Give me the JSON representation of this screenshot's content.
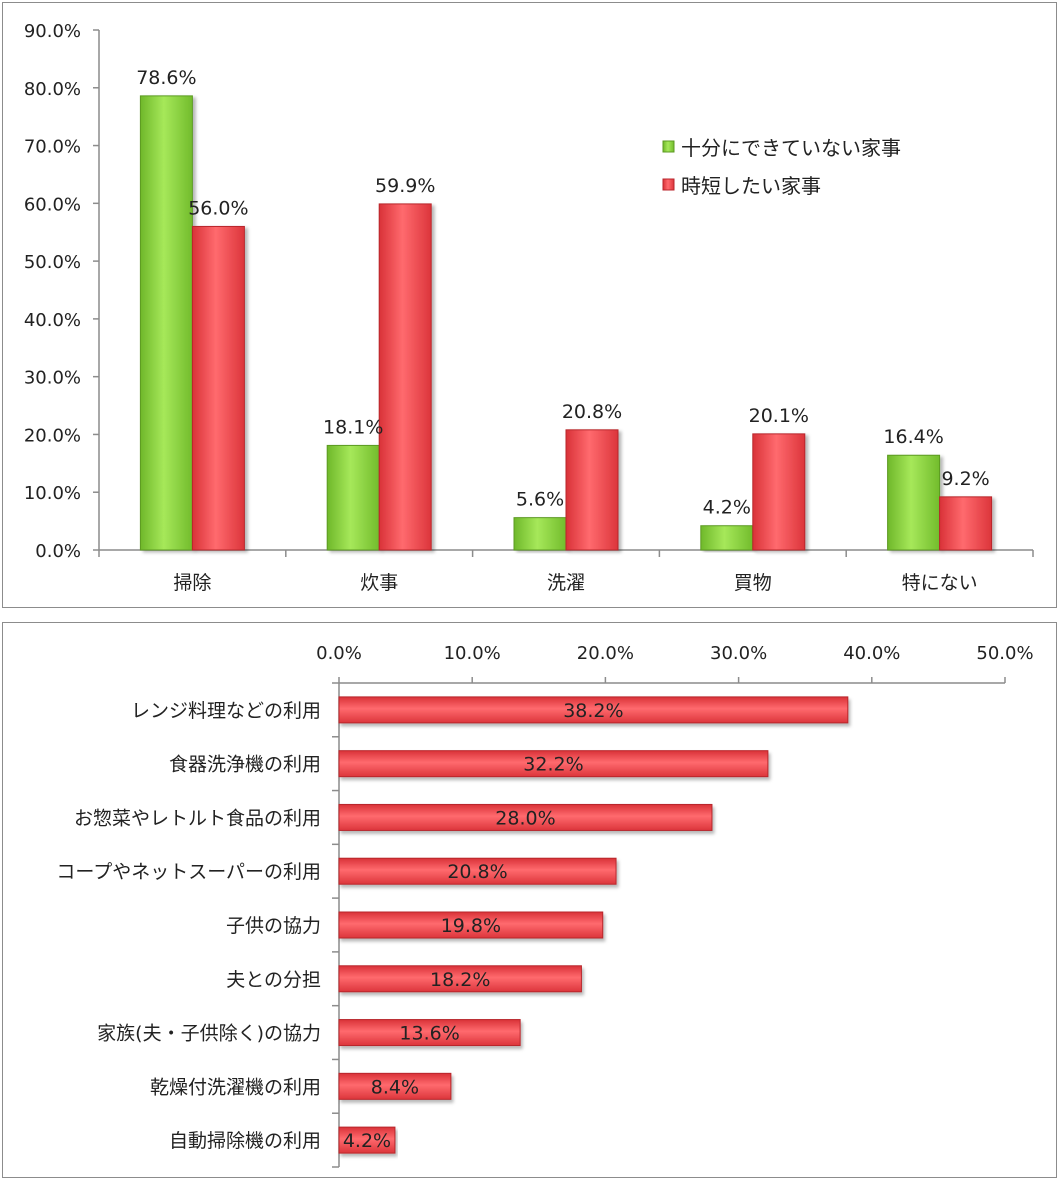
{
  "chart_data": [
    {
      "type": "bar",
      "categories": [
        "掃除",
        "炊事",
        "洗濯",
        "買物",
        "特にない"
      ],
      "series": [
        {
          "name": "十分にできていない家事",
          "values": [
            78.6,
            18.1,
            5.6,
            4.2,
            16.4
          ],
          "labels": [
            "78.6%",
            "18.1%",
            "5.6%",
            "4.2%",
            "16.4%"
          ],
          "color": "#8fd43c"
        },
        {
          "name": "時短したい家事",
          "values": [
            56.0,
            59.9,
            20.8,
            20.1,
            9.2
          ],
          "labels": [
            "56.0%",
            "59.9%",
            "20.8%",
            "20.1%",
            "9.2%"
          ],
          "color": "#f0494f"
        }
      ],
      "y_ticks": [
        "0.0%",
        "10.0%",
        "20.0%",
        "30.0%",
        "40.0%",
        "50.0%",
        "60.0%",
        "70.0%",
        "80.0%",
        "90.0%"
      ],
      "ylim": [
        0,
        90
      ],
      "grid": false,
      "legend_position": "upper-right"
    },
    {
      "type": "bar",
      "orientation": "horizontal",
      "categories": [
        "レンジ料理などの利用",
        "食器洗浄機の利用",
        "お惣菜やレトルト食品の利用",
        "コープやネットスーパーの利用",
        "子供の協力",
        "夫との分担",
        "家族(夫・子供除く)の協力",
        "乾燥付洗濯機の利用",
        "自動掃除機の利用"
      ],
      "values": [
        38.2,
        32.2,
        28.0,
        20.8,
        19.8,
        18.2,
        13.6,
        8.4,
        4.2
      ],
      "labels": [
        "38.2%",
        "32.2%",
        "28.0%",
        "20.8%",
        "19.8%",
        "18.2%",
        "13.6%",
        "8.4%",
        "4.2%"
      ],
      "x_ticks": [
        "0.0%",
        "10.0%",
        "20.0%",
        "30.0%",
        "40.0%",
        "50.0%"
      ],
      "xlim": [
        0,
        50
      ],
      "grid": false,
      "color": "#f0494f"
    }
  ]
}
